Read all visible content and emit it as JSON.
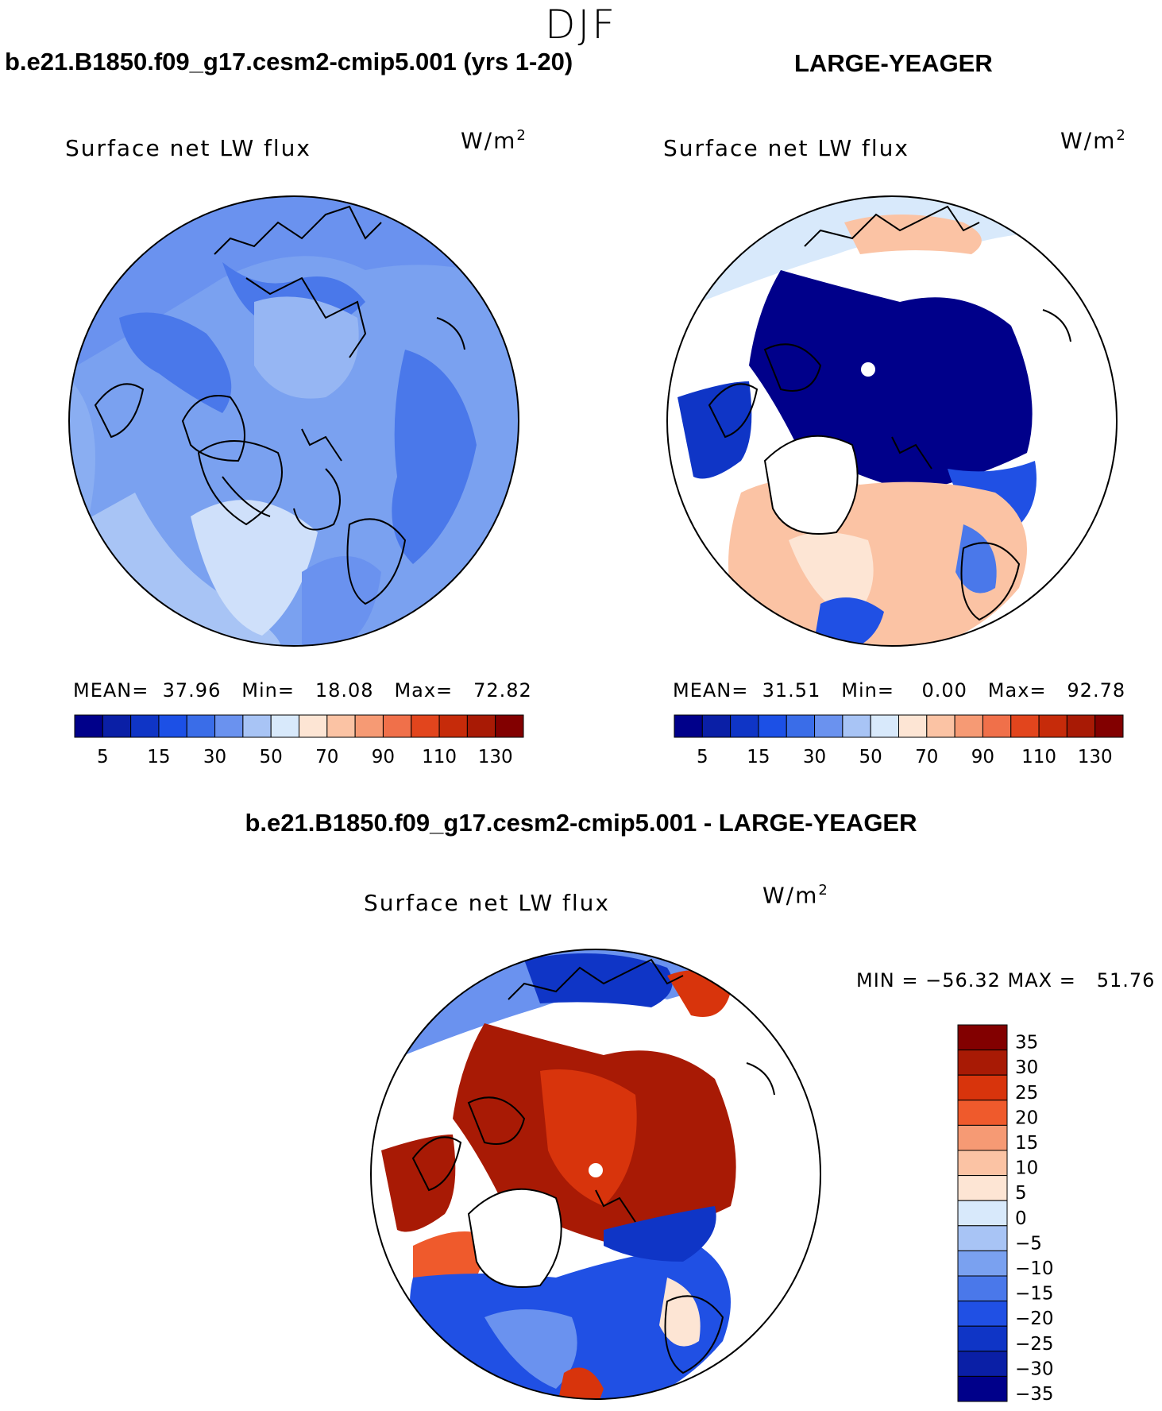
{
  "figure": {
    "season": "DJF",
    "panel_left": {
      "case_title": "b.e21.B1850.f09_g17.cesm2-cmip5.001 (yrs 1-20)",
      "field_label": "Surface net LW flux",
      "units": "W/m",
      "units_exp": "2",
      "mean_label": "MEAN=",
      "mean_value": "37.96",
      "min_label": "Min=",
      "min_value": "18.08",
      "max_label": "Max=",
      "max_value": "72.82"
    },
    "panel_right": {
      "case_title": "LARGE-YEAGER",
      "field_label": "Surface net LW flux",
      "units": "W/m",
      "units_exp": "2",
      "mean_label": "MEAN=",
      "mean_value": "31.51",
      "min_label": "Min=",
      "min_value": "0.00",
      "max_label": "Max=",
      "max_value": "92.78"
    },
    "panel_diff": {
      "case_title": "b.e21.B1850.f09_g17.cesm2-cmip5.001 - LARGE-YEAGER",
      "field_label": "Surface net LW flux",
      "units": "W/m",
      "units_exp": "2",
      "minmax_text": "MIN = −56.32 MAX =   51.76"
    }
  },
  "colorbar_abs": {
    "colors": [
      "#00008a",
      "#0a1fa6",
      "#0f35c6",
      "#1c50e6",
      "#3a6de8",
      "#6a92ef",
      "#a8c4f5",
      "#d8e9fb",
      "#fde5d4",
      "#fbc3a4",
      "#f69a74",
      "#f0704a",
      "#e2451d",
      "#c62b0a",
      "#a81a05",
      "#820000"
    ],
    "tick_labels": [
      "5",
      "15",
      "30",
      "50",
      "70",
      "90",
      "110",
      "130"
    ]
  },
  "colorbar_diff": {
    "colors": [
      "#820000",
      "#a81a05",
      "#d8340c",
      "#ef5a2c",
      "#f69a74",
      "#fbc3a4",
      "#fde5d4",
      "#d8e9fb",
      "#a8c4f5",
      "#7aa1f0",
      "#4a78ea",
      "#2050e4",
      "#0f35c6",
      "#0a1fa6",
      "#00008a"
    ],
    "tick_labels": [
      "35",
      "30",
      "25",
      "20",
      "15",
      "10",
      "5",
      "0",
      "−5",
      "−10",
      "−15",
      "−20",
      "−25",
      "−30",
      "−35"
    ]
  }
}
